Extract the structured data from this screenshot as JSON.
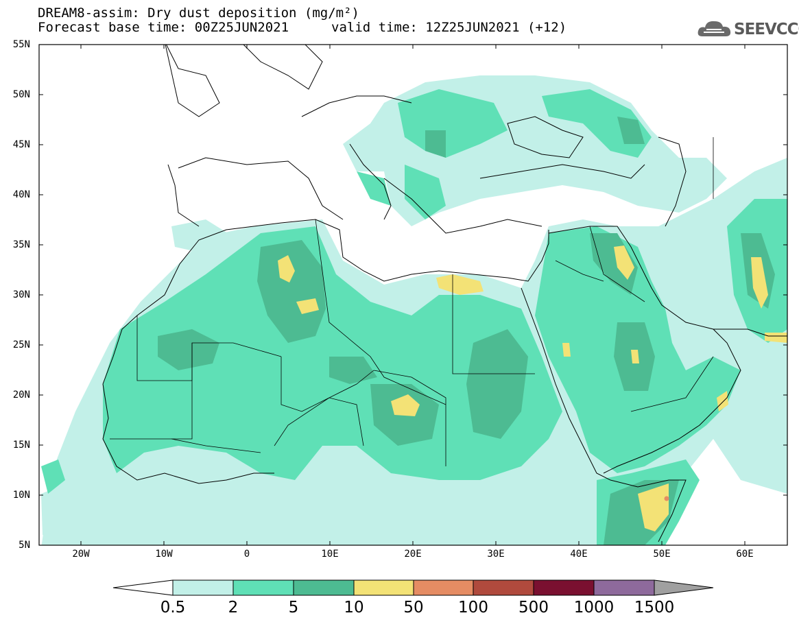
{
  "header": {
    "title_line1": "DREAM8-assim: Dry dust deposition (mg/m²)",
    "title_line2": "Forecast base time: 00Z25JUN2021",
    "valid_time": "valid time: 12Z25JUN2021 (+12)",
    "logo_text": "SEEVCCC",
    "logo_icon": "cloud-logo-icon"
  },
  "map": {
    "projection": "lat-lon",
    "lon_range": [
      -25,
      65
    ],
    "lat_range": [
      5,
      55
    ],
    "lat_labels": [
      "55N",
      "50N",
      "45N",
      "40N",
      "35N",
      "30N",
      "25N",
      "20N",
      "15N",
      "10N",
      "5N"
    ],
    "lon_labels": [
      "20W",
      "10W",
      "0",
      "10E",
      "20E",
      "30E",
      "40E",
      "50E",
      "60E"
    ]
  },
  "legend": {
    "labels": [
      "0.5",
      "2",
      "5",
      "10",
      "50",
      "100",
      "500",
      "1000",
      "1500"
    ],
    "colors": [
      "#c2f0e8",
      "#5fe0b6",
      "#4dbb92",
      "#f3e276",
      "#e58c63",
      "#b04a3d",
      "#7a1030",
      "#8e6a9c"
    ],
    "under_color": "#ffffff",
    "over_color": "#a0a0a0"
  }
}
